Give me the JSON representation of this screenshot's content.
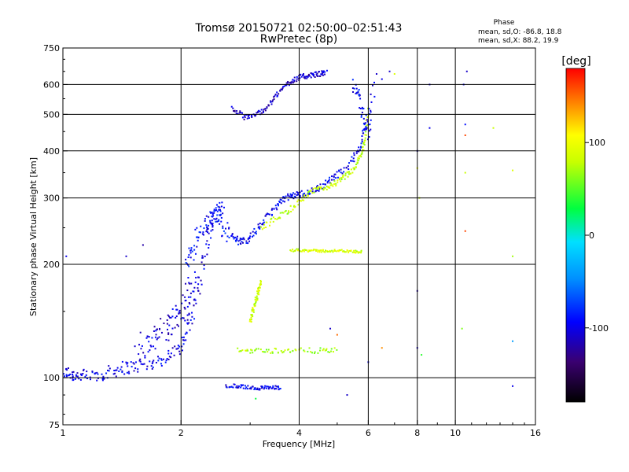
{
  "chart_data": {
    "type": "scatter",
    "title": "Tromsø 20150721 02:50:00–02:51:43",
    "subtitle": "RwPretec (8p)",
    "xlabel": "Frequency [MHz]",
    "ylabel": "Stationary phase Virtual Height [km]",
    "x_scale": "log",
    "y_scale": "log",
    "xlim": [
      1,
      16
    ],
    "ylim": [
      75,
      750
    ],
    "x_ticks": [
      1,
      2,
      4,
      6,
      8,
      10,
      16
    ],
    "x_tick_labels": [
      "1",
      "2",
      "4",
      "6",
      "8",
      "10",
      "16"
    ],
    "y_ticks": [
      75,
      100,
      200,
      300,
      400,
      500,
      600,
      750
    ],
    "y_tick_labels": [
      "75",
      "100",
      "200",
      "300",
      "400",
      "500",
      "600",
      "750"
    ],
    "grid": true,
    "stats": {
      "heading": "Phase",
      "line_o": "mean, sd,O: -86.8, 18.8",
      "line_x": "mean, sd,X: 88.2, 19.9"
    },
    "colorbar": {
      "label": "[deg]",
      "range": [
        -180,
        180
      ],
      "tick_values": [
        100,
        0,
        -100
      ],
      "tick_labels": [
        "100",
        "0",
        "-100"
      ]
    },
    "traces": [
      {
        "x": [
          1.0,
          1.05,
          1.1,
          1.2,
          1.3,
          1.4,
          1.5,
          1.65,
          1.8,
          1.95,
          2.05,
          2.15,
          2.25,
          2.35,
          2.45,
          2.55
        ],
        "y": [
          104,
          102,
          101,
          101,
          103,
          106,
          107,
          108,
          112,
          118,
          128,
          150,
          190,
          240,
          270,
          290
        ],
        "phase": -100,
        "spread": 0.05
      },
      {
        "x": [
          1.55,
          1.65,
          1.75,
          1.85,
          1.95,
          2.05,
          2.1,
          2.15
        ],
        "y": [
          120,
          125,
          130,
          137,
          145,
          150,
          165,
          180
        ],
        "phase": -105,
        "spread": 0.1
      },
      {
        "x": [
          2.05,
          2.15,
          2.25,
          2.35,
          2.45,
          2.55,
          2.65
        ],
        "y": [
          200,
          220,
          245,
          260,
          270,
          255,
          240
        ],
        "phase": -90,
        "spread": 0.07
      },
      {
        "x": [
          2.7,
          2.8,
          2.95,
          3.1,
          3.3,
          3.5,
          3.7,
          3.9,
          4.1,
          4.4,
          4.7,
          5.0,
          5.4,
          5.7,
          5.95
        ],
        "y": [
          240,
          230,
          232,
          245,
          265,
          285,
          300,
          305,
          308,
          315,
          330,
          345,
          370,
          410,
          470
        ],
        "phase": -95,
        "spread": 0.025
      },
      {
        "x": [
          2.7,
          2.9,
          3.1,
          3.3,
          3.5,
          3.7,
          3.9,
          4.1,
          4.3,
          4.5,
          4.7
        ],
        "y": [
          520,
          490,
          500,
          520,
          560,
          600,
          620,
          630,
          635,
          640,
          645
        ],
        "phase": -110,
        "spread": 0.02
      },
      {
        "x": [
          3.2,
          3.5,
          3.8,
          4.1,
          4.4,
          4.7,
          5.0,
          5.3,
          5.55,
          5.75,
          5.9,
          6.0
        ],
        "y": [
          250,
          265,
          280,
          300,
          315,
          320,
          330,
          345,
          360,
          390,
          430,
          520
        ],
        "phase": 80,
        "spread": 0.02
      },
      {
        "x": [
          3.0,
          3.05,
          3.1,
          3.15,
          3.2
        ],
        "y": [
          140,
          150,
          160,
          170,
          180
        ],
        "phase": 85,
        "spread": 0.02
      },
      {
        "x": [
          3.8,
          4.1,
          4.4,
          4.7,
          5.1,
          5.5,
          5.8
        ],
        "y": [
          218,
          218,
          217,
          217,
          217,
          216,
          216
        ],
        "phase": 90,
        "spread": 0.01
      },
      {
        "x": [
          2.6,
          2.8,
          3.0,
          3.2,
          3.4,
          3.6
        ],
        "y": [
          95,
          95,
          94,
          94,
          94,
          94
        ],
        "phase": -100,
        "spread": 0.015
      },
      {
        "x": [
          2.8,
          3.1,
          3.5,
          3.9,
          4.5,
          5.0
        ],
        "y": [
          118,
          118,
          118,
          118,
          118,
          118
        ],
        "phase": 70,
        "spread": 0.02
      },
      {
        "x": [
          5.5,
          5.7,
          5.85,
          6.0,
          6.2
        ],
        "y": [
          600,
          560,
          480,
          440,
          600
        ],
        "phase": -95,
        "spread": 0.05
      }
    ],
    "scatter_points": [
      {
        "x": 1.02,
        "y": 210,
        "phase": -100
      },
      {
        "x": 1.45,
        "y": 210,
        "phase": -110
      },
      {
        "x": 1.6,
        "y": 225,
        "phase": -120
      },
      {
        "x": 6.3,
        "y": 640,
        "phase": -110
      },
      {
        "x": 6.5,
        "y": 620,
        "phase": -100
      },
      {
        "x": 8.0,
        "y": 400,
        "phase": -110
      },
      {
        "x": 8.0,
        "y": 360,
        "phase": 100
      },
      {
        "x": 8.1,
        "y": 300,
        "phase": 80
      },
      {
        "x": 8.6,
        "y": 600,
        "phase": -110
      },
      {
        "x": 8.6,
        "y": 460,
        "phase": -100
      },
      {
        "x": 10.5,
        "y": 600,
        "phase": -100
      },
      {
        "x": 10.6,
        "y": 470,
        "phase": -90
      },
      {
        "x": 10.6,
        "y": 440,
        "phase": 160
      },
      {
        "x": 10.6,
        "y": 350,
        "phase": 80
      },
      {
        "x": 10.6,
        "y": 245,
        "phase": 160
      },
      {
        "x": 10.7,
        "y": 650,
        "phase": -110
      },
      {
        "x": 14.0,
        "y": 355,
        "phase": 90
      },
      {
        "x": 14.0,
        "y": 210,
        "phase": 70
      },
      {
        "x": 12.5,
        "y": 460,
        "phase": 80
      },
      {
        "x": 14.0,
        "y": 95,
        "phase": -100
      },
      {
        "x": 14.0,
        "y": 125,
        "phase": -40
      },
      {
        "x": 10.4,
        "y": 135,
        "phase": 60
      },
      {
        "x": 8.0,
        "y": 170,
        "phase": -120
      },
      {
        "x": 8.0,
        "y": 120,
        "phase": -110
      },
      {
        "x": 8.2,
        "y": 115,
        "phase": 40
      },
      {
        "x": 7.0,
        "y": 640,
        "phase": 90
      },
      {
        "x": 6.8,
        "y": 650,
        "phase": -110
      },
      {
        "x": 5.3,
        "y": 90,
        "phase": -110
      },
      {
        "x": 5.0,
        "y": 130,
        "phase": 150
      },
      {
        "x": 6.0,
        "y": 110,
        "phase": -100
      },
      {
        "x": 6.5,
        "y": 120,
        "phase": 140
      },
      {
        "x": 4.8,
        "y": 135,
        "phase": -110
      },
      {
        "x": 3.1,
        "y": 88,
        "phase": 30
      }
    ]
  }
}
